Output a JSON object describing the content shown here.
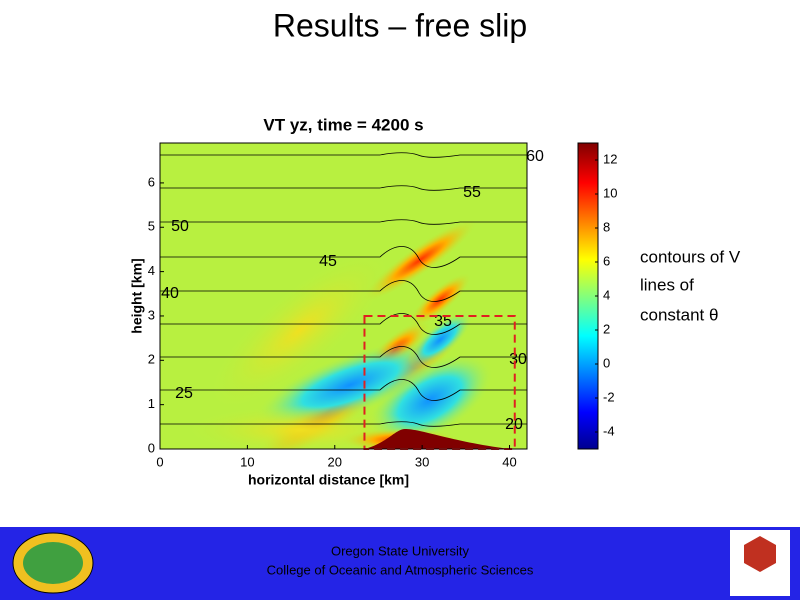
{
  "slide": {
    "title": "Results – free slip",
    "notes": [
      "contours of V",
      "lines of",
      "constant θ"
    ],
    "footer": [
      "Oregon State University",
      "College of Oceanic and Atmospheric Sciences"
    ]
  },
  "chart_data": {
    "type": "contour",
    "title": "VT yz, time = 4200 s",
    "x_label": "horizontal distance [km]",
    "y_label": "height [km]",
    "xlim": [
      0,
      42
    ],
    "xticks": [
      0,
      10,
      20,
      30,
      40
    ],
    "ylim": [
      0,
      6.9
    ],
    "yticks": [
      0,
      1,
      2,
      3,
      4,
      5,
      6
    ],
    "colorbar": {
      "lim": [
        -5,
        13
      ],
      "ticks": [
        -4,
        -2,
        0,
        2,
        4,
        6,
        8,
        10,
        12
      ]
    },
    "contour_labels": [
      "60",
      "55",
      "50",
      "45",
      "40",
      "35",
      "30",
      "25",
      "20"
    ],
    "box": {
      "x": [
        23.4,
        40.6
      ],
      "y": [
        0,
        3.0
      ]
    }
  }
}
